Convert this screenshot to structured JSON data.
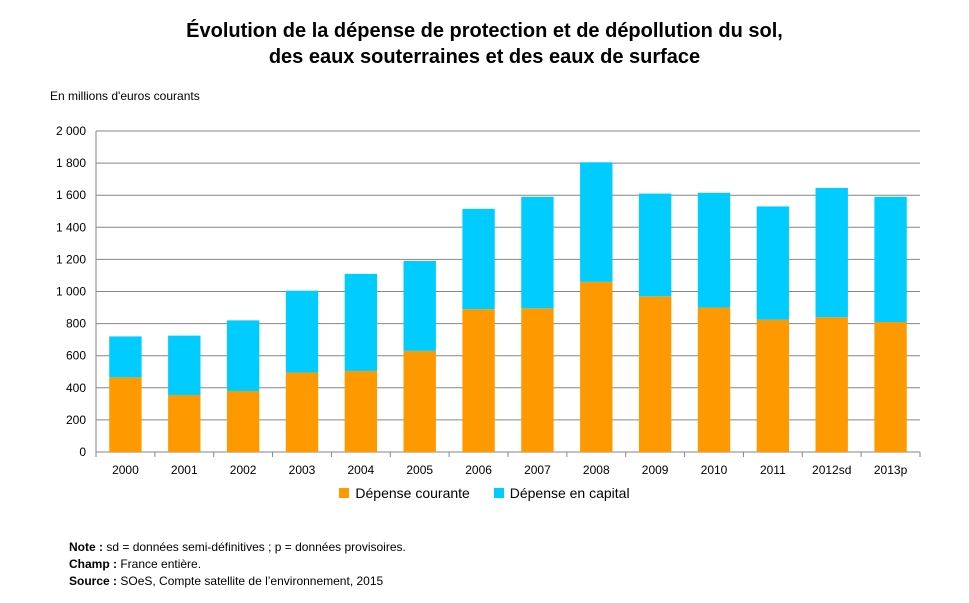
{
  "chart_data": {
    "type": "bar",
    "stacked": true,
    "title_line1": "Évolution de la dépense de protection et de dépollution du sol,",
    "title_line2": "des eaux souterraines et des eaux de surface",
    "ylabel": "En millions d'euros courants",
    "xlabel": "",
    "categories": [
      "2000",
      "2001",
      "2002",
      "2003",
      "2004",
      "2005",
      "2006",
      "2007",
      "2008",
      "2009",
      "2010",
      "2011",
      "2012sd",
      "2013p"
    ],
    "series": [
      {
        "name": "Dépense courante",
        "color": "#ff9900",
        "values": [
          465,
          355,
          380,
          495,
          505,
          630,
          890,
          895,
          1060,
          970,
          900,
          825,
          840,
          810
        ]
      },
      {
        "name": "Dépense en capital",
        "color": "#00ccff",
        "values": [
          255,
          370,
          440,
          510,
          605,
          560,
          625,
          695,
          745,
          640,
          715,
          705,
          805,
          780
        ]
      }
    ],
    "ylim": [
      0,
      2000
    ],
    "yticks": [
      0,
      200,
      400,
      600,
      800,
      1000,
      1200,
      1400,
      1600,
      1800,
      2000
    ],
    "ytick_labels": [
      "0",
      "200",
      "400",
      "600",
      "800",
      "1 000",
      "1 200",
      "1 400",
      "1 600",
      "1 800",
      "2 000"
    ],
    "grid": true,
    "legend_position": "bottom"
  },
  "notes": {
    "note_label": "Note :",
    "note_text": "sd = données semi-définitives ; p = données provisoires.",
    "champ_label": "Champ :",
    "champ_text": "France entière.",
    "source_label": "Source :",
    "source_text": "SOeS, Compte satellite de l’environnement, 2015"
  }
}
